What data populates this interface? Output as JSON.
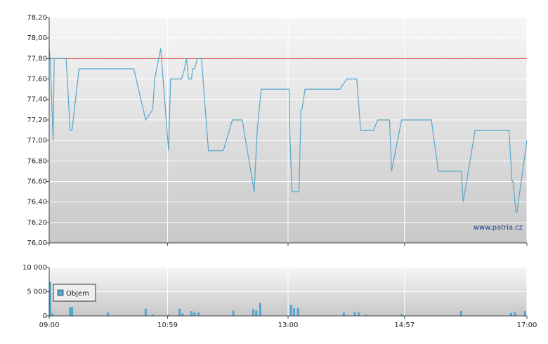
{
  "chart_data": [
    {
      "type": "line",
      "x": [
        0,
        1,
        4,
        5,
        17,
        21,
        23,
        30,
        85,
        97,
        104,
        106,
        112,
        120,
        122,
        133,
        136,
        138,
        140,
        143,
        144,
        146,
        149,
        153,
        160,
        175,
        184,
        194,
        206,
        209,
        213,
        241,
        242,
        244,
        251,
        253,
        254,
        257,
        292,
        299,
        309,
        313,
        326,
        330,
        342,
        344,
        354,
        384,
        391,
        414,
        416,
        428,
        462,
        465,
        466,
        469,
        470,
        480
      ],
      "values": [
        77.9,
        77.8,
        77.0,
        77.8,
        77.8,
        77.1,
        77.1,
        77.7,
        77.7,
        77.2,
        77.3,
        77.6,
        77.9,
        76.9,
        77.6,
        77.6,
        77.7,
        77.8,
        77.6,
        77.6,
        77.7,
        77.7,
        77.8,
        77.8,
        76.9,
        76.9,
        77.2,
        77.2,
        76.5,
        77.1,
        77.5,
        77.5,
        77.0,
        76.5,
        76.5,
        77.3,
        77.3,
        77.5,
        77.5,
        77.6,
        77.6,
        77.1,
        77.1,
        77.2,
        77.2,
        76.7,
        77.2,
        77.2,
        76.7,
        76.7,
        76.4,
        77.1,
        77.1,
        76.6,
        76.6,
        76.3,
        76.3,
        77.0
      ],
      "color": "#55a8cc",
      "ref_line": 77.8,
      "ref_color": "#e05050",
      "xlim": [
        0,
        480
      ],
      "ylim": [
        76.0,
        78.2
      ],
      "yticks": [
        {
          "value": 76.0,
          "label": "76,00"
        },
        {
          "value": 76.2,
          "label": "76,20"
        },
        {
          "value": 76.4,
          "label": "76,40"
        },
        {
          "value": 76.6,
          "label": "76,60"
        },
        {
          "value": 76.8,
          "label": "76,80"
        },
        {
          "value": 77.0,
          "label": "77,00"
        },
        {
          "value": 77.2,
          "label": "77,20"
        },
        {
          "value": 77.4,
          "label": "77,40"
        },
        {
          "value": 77.6,
          "label": "77,60"
        },
        {
          "value": 77.8,
          "label": "77,80"
        },
        {
          "value": 78.0,
          "label": "78,00"
        },
        {
          "value": 78.2,
          "label": "78,20"
        }
      ],
      "grid": true,
      "watermark": "www.patria.cz"
    },
    {
      "type": "bar",
      "x": [
        1,
        3,
        21,
        23,
        59,
        97,
        104,
        120,
        131,
        134,
        143,
        146,
        150,
        185,
        205,
        208,
        212,
        243,
        246,
        250,
        296,
        307,
        311,
        318,
        354,
        414,
        464,
        468,
        478
      ],
      "series": [
        {
          "name": "Objem",
          "color": "#4fa6cf",
          "values": [
            7000,
            500,
            1800,
            1800,
            700,
            1500,
            300,
            300,
            1500,
            500,
            1000,
            700,
            700,
            1100,
            1400,
            1100,
            2700,
            2300,
            1600,
            1600,
            700,
            800,
            700,
            300,
            400,
            1000,
            600,
            800,
            1000
          ]
        }
      ],
      "xlim": [
        0,
        480
      ],
      "xticks": [
        {
          "value": 0,
          "label": "09:00"
        },
        {
          "value": 119,
          "label": "10:59"
        },
        {
          "value": 240,
          "label": "13:00"
        },
        {
          "value": 357,
          "label": "14:57"
        },
        {
          "value": 480,
          "label": "17:00"
        }
      ],
      "ylim": [
        0,
        10000
      ],
      "yticks": [
        0,
        {
          "value": 5000,
          "label": "5 000"
        },
        {
          "value": 10000,
          "label": "10 000"
        }
      ],
      "grid": true,
      "legend": "upper-left"
    }
  ]
}
